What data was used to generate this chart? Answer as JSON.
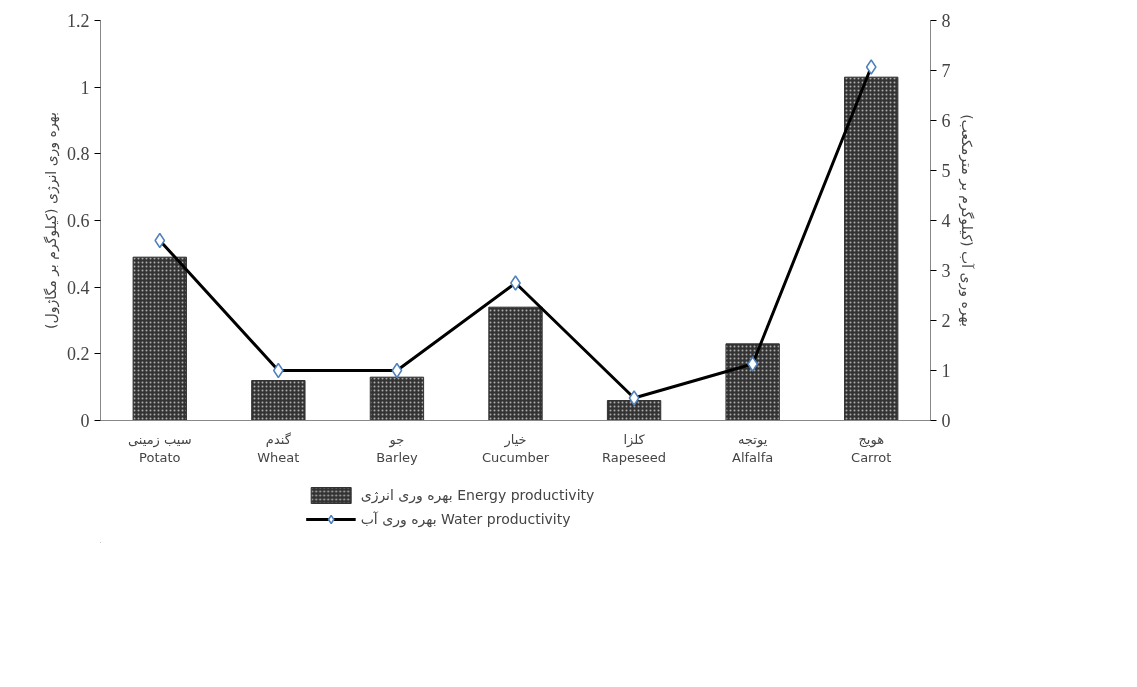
{
  "chart_data": {
    "type": "bar",
    "categories": [
      "سیب زمینی\nPotato",
      "گندم\nWheat",
      "جو\nBarley",
      "خیار\nCucumber",
      "کلزا\nRapeseed",
      "یوتجه\nAlfalfa",
      "هویج\nCarrot"
    ],
    "ylabel": "بهره وری انرژی (کیلوگرم بر مگاژول)",
    "y2label": "بهره وری آب (کیلوگرم بر مترمکعب)",
    "series": [
      {
        "name": "بهره وری انرژی Energy productivity",
        "color": "#333333",
        "values": [
          0.49,
          0.12,
          0.13,
          0.34,
          0.06,
          0.23,
          1.03
        ]
      },
      {
        "name": "بهره وری آب Water productivity",
        "type": "line",
        "axis": "y2",
        "color": "#000000",
        "marker": "diamond",
        "values": [
          3.6,
          1.0,
          1.0,
          2.75,
          0.45,
          1.13,
          7.07
        ]
      }
    ],
    "ylim": [
      0,
      1.2
    ],
    "yticks": [
      0,
      {
        "value": 0.2,
        "label": "0.2"
      },
      {
        "value": 0.4,
        "label": "0.4"
      },
      {
        "value": 0.6,
        "label": "0.6"
      },
      {
        "value": 0.8,
        "label": "0.8"
      },
      1,
      {
        "value": 1.2,
        "label": "1.2"
      }
    ],
    "y2lim": [
      0,
      8
    ],
    "y2ticks": [
      0,
      1,
      2,
      3,
      4,
      5,
      6,
      7,
      8
    ],
    "grid": false,
    "legend": "bottom"
  }
}
